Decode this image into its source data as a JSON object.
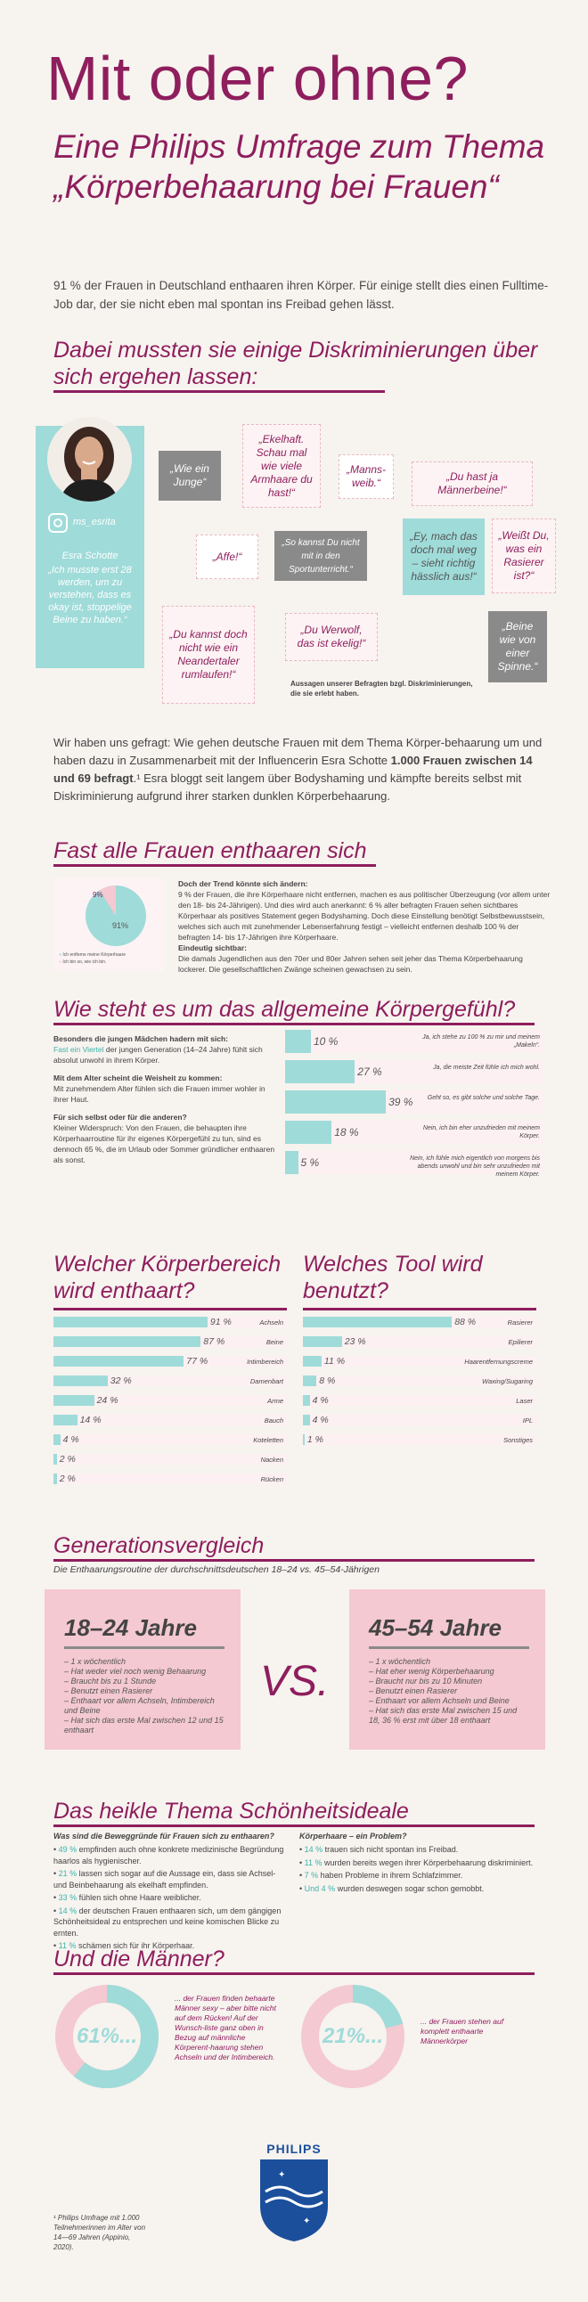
{
  "header": {
    "title": "Mit oder ohne?",
    "subtitle": "Eine Philips Umfrage zum Thema „Körperbehaarung bei Frauen“",
    "intro": "91 % der Frauen in Deutschland enthaaren ihren Körper. Für einige stellt dies einen Fulltime-Job dar, der sie nicht eben mal spontan ins Freibad gehen lässt."
  },
  "discrimination": {
    "heading": "Dabei mussten sie einige Diskriminierungen über sich ergehen lassen:",
    "influencer": {
      "handle": "ms_esrita",
      "name": "Esra Schotte",
      "quote": "„Ich musste erst 28 werden, um zu verstehen, dass es okay ist, stoppelige Beine zu haben.“"
    },
    "quotes": [
      "„Wie ein Junge“",
      "„Ekelhaft. Schau mal wie viele Armhaare du hast!“",
      "„Manns-weib.“",
      "„Du hast ja Männerbeine!“",
      "„Affe!“",
      "„So kannst Du nicht mit in den Sportunterricht.“",
      "„Ey, mach das doch mal weg – sieht richtig hässlich aus!“",
      "„Weißt Du, was ein Rasierer ist?“",
      "„Du kannst doch nicht wie ein Neandertaler rumlaufen!“",
      "„Du Werwolf, das ist ekelig!“",
      "„Beine wie von einer Spinne.“"
    ],
    "note": "Aussagen unserer Befragten bzgl. Diskriminierungen, die sie erlebt haben."
  },
  "survey_text": {
    "part1": "Wir haben uns gefragt: Wie gehen deutsche Frauen mit dem Thema Körper-behaarung um und haben dazu in Zusammenarbeit mit der Influencerin Esra Schotte ",
    "bold": "1.000 Frauen zwischen 14 und 69 befragt",
    "part2": ".¹ Esra bloggt seit langem über Bodyshaming und kämpfte bereits selbst mit Diskriminierung aufgrund ihrer starken dunklen Körperbehaarung."
  },
  "section_remove": {
    "heading": "Fast alle Frauen enthaaren sich",
    "pie_labels": [
      "9%",
      "91%"
    ],
    "legend": [
      "Ich entferne meine Körperhaare",
      "Ich bin so, wie ich bin."
    ],
    "trend_title": "Doch der Trend könnte sich ändern:",
    "trend_text": "9 % der Frauen, die ihre Körperhaare nicht entfernen, machen es aus politischer Überzeugung (vor allem unter den 18- bis 24-Jährigen). Und dies wird auch anerkannt: 6 % aller befragten Frauen sehen sichtbares Körperhaar als positives Statement gegen Bodyshaming. Doch diese Einstellung benötigt Selbstbewusstsein, welches sich auch mit zunehmender Lebenserfahrung festigt – vielleicht entfernen deshalb 100 % der befragten 14- bis 17-Jährigen ihre Körperhaare.",
    "visible_title": "Eindeutig sichtbar:",
    "visible_text": "Die damals Jugendlichen aus den 70er und 80er Jahren sehen seit jeher das Thema Körperbehaarung lockerer. Die gesellschaftlichen Zwänge scheinen gewachsen zu sein."
  },
  "section_feeling": {
    "heading": "Wie steht es um das allgemeine Körpergefühl?",
    "left_blocks": [
      {
        "title": "Besonders die jungen Mädchen hadern mit sich:",
        "highlight": "Fast ein Viertel",
        "text": " der jungen Generation (14–24 Jahre) fühlt sich absolut unwohl in ihrem Körper."
      },
      {
        "title": "Mit dem Alter scheint die Weisheit zu kommen:",
        "highlight": "",
        "text": "Mit zunehmendem Alter fühlen sich die Frauen immer wohler in ihrer Haut."
      },
      {
        "title": "Für sich selbst oder für die anderen?",
        "highlight": "",
        "text": "Kleiner Widerspruch: Von den Frauen, die behaupten ihre Körperhaarroutine für ihr eigenes Körpergefühl zu tun, sind es dennoch 65 %, die im Urlaub oder Sommer gründlicher enthaaren als sonst."
      }
    ],
    "rows": [
      {
        "value": 10,
        "label": "Ja, ich stehe zu 100 % zu mir und meinem „Makeln“."
      },
      {
        "value": 27,
        "label": "Ja, die meiste Zeit fühle ich mich wohl."
      },
      {
        "value": 39,
        "label": "Geht so, es gibt solche und solche Tage."
      },
      {
        "value": 18,
        "label": "Nein, ich bin eher unzufrieden mit meinem Körper."
      },
      {
        "value": 5,
        "label": "Nein, ich fühle mich eigentlich von morgens bis abends unwohl und bin sehr unzufrieden mit meinem Körper."
      }
    ]
  },
  "section_body": {
    "heading": "Welcher Körperbereich wird enthaart?",
    "rows": [
      {
        "value": 91,
        "label": "Achseln"
      },
      {
        "value": 87,
        "label": "Beine"
      },
      {
        "value": 77,
        "label": "Intimbereich"
      },
      {
        "value": 32,
        "label": "Damenbart"
      },
      {
        "value": 24,
        "label": "Arme"
      },
      {
        "value": 14,
        "label": "Bauch"
      },
      {
        "value": 4,
        "label": "Koteletten"
      },
      {
        "value": 2,
        "label": "Nacken"
      },
      {
        "value": 2,
        "label": "Rücken"
      }
    ]
  },
  "section_tool": {
    "heading": "Welches Tool wird benutzt?",
    "rows": [
      {
        "value": 88,
        "label": "Rasierer"
      },
      {
        "value": 23,
        "label": "Epilierer"
      },
      {
        "value": 11,
        "label": "Haarentfernungscreme"
      },
      {
        "value": 8,
        "label": "Waxing/Sugaring"
      },
      {
        "value": 4,
        "label": "Laser"
      },
      {
        "value": 4,
        "label": "IPL"
      },
      {
        "value": 1,
        "label": "Sonstiges"
      }
    ]
  },
  "section_generation": {
    "heading": "Generationsvergleich",
    "subtitle": "Die Enthaarungsroutine der durchschnittsdeutschen 18–24 vs. 45–54-Jährigen",
    "vs": "VS.",
    "left": {
      "title": "18–24 Jahre",
      "items": [
        "1 x wöchentlich",
        "Hat weder viel noch wenig Behaarung",
        "Braucht bis zu 1 Stunde",
        "Benutzt einen Rasierer",
        "Enthaart vor allem Achseln, Intimbereich und Beine",
        "Hat sich das erste Mal zwischen 12 und 15 enthaart"
      ]
    },
    "right": {
      "title": "45–54 Jahre",
      "items": [
        "1 x wöchentlich",
        "Hat eher wenig Körperbehaarung",
        "Braucht nur bis zu 10 Minuten",
        "Benutzt einen Rasierer",
        "Enthaart vor allem Achseln und Beine",
        "Hat sich das erste Mal zwischen 15 und 18, 36 % erst mit über 18 enthaart"
      ]
    }
  },
  "section_beauty": {
    "heading": "Das heikle Thema Schönheitsideale",
    "left_title": "Was sind die Beweggründe für Frauen sich zu enthaaren?",
    "left_items": [
      {
        "pct": "49 %",
        "text": " empfinden auch ohne konkrete medizinische Begründung haarlos als hygienischer."
      },
      {
        "pct": "21 %",
        "text": " lassen sich sogar auf die Aussage ein, dass sie Achsel- und Beinbehaarung als ekelhaft empfinden."
      },
      {
        "pct": "33 %",
        "text": " fühlen sich ohne Haare weiblicher."
      },
      {
        "pct": "14 %",
        "text": " der deutschen Frauen enthaaren sich, um dem gängigen Schönheitsideal zu entsprechen und keine komischen Blicke zu ernten."
      },
      {
        "pct": "11 %",
        "text": " schämen sich für ihr Körperhaar."
      }
    ],
    "right_title": "Körperhaare – ein Problem?",
    "right_items": [
      {
        "pct": "14 %",
        "text": " trauen sich nicht spontan ins Freibad."
      },
      {
        "pct": "11 %",
        "text": " wurden bereits wegen ihrer Körperbehaarung diskriminiert."
      },
      {
        "pct": "7 %",
        "text": " haben Probleme in ihrem Schlafzimmer."
      },
      {
        "pct": "Und 4 %",
        "text": " wurden deswegen sogar schon gemobbt."
      }
    ]
  },
  "section_men": {
    "heading": "Und die Männer?",
    "left": {
      "value": 61,
      "label": "61%...",
      "text": "... der Frauen finden behaarte Männer sexy – aber bitte nicht auf dem Rücken! Auf der Wunsch-liste ganz oben in Bezug auf männliche Körperent-haarung stehen Achseln und der Intimbereich."
    },
    "right": {
      "value": 21,
      "label": "21%...",
      "text": "... der Frauen stehen auf komplett enthaarte Männerkörper"
    }
  },
  "footer": {
    "footnote": "¹ Philips Umfrage mit 1.000 Teilnehmerinnen im Alter von 14—69 Jahren (Appinio, 2020).",
    "brand": "PHILIPS"
  },
  "colors": {
    "brand": "#8e1e5d",
    "teal": "#9fdbd9",
    "pink": "#f4c9d1",
    "background": "#f7f3ef"
  }
}
